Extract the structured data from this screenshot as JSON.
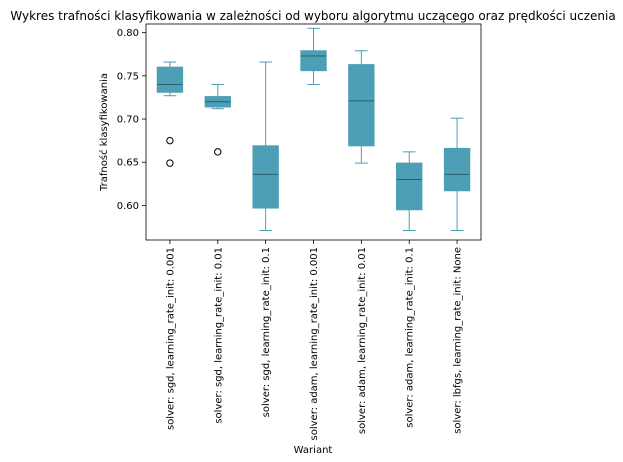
{
  "chart_data": {
    "type": "box",
    "title": "Wykres trafności klasyfikowania w zależności od wyboru algorytmu uczącego oraz prędkości uczenia",
    "xlabel": "Wariant",
    "ylabel": "Trafność klasyfikowania",
    "ylim": [
      0.56,
      0.81
    ],
    "yticks": [
      0.6,
      0.65,
      0.7,
      0.75,
      0.8
    ],
    "ytick_labels": [
      "0.60",
      "0.65",
      "0.70",
      "0.75",
      "0.80"
    ],
    "grid": false,
    "box_color": "#4c9fb5",
    "categories": [
      "solver: sgd, learning_rate_init: 0.001",
      "solver: sgd, learning_rate_init: 0.01",
      "solver: sgd, learning_rate_init: 0.1",
      "solver: adam, learning_rate_init: 0.001",
      "solver: adam, learning_rate_init: 0.01",
      "solver: adam, learning_rate_init: 0.1",
      "solver: lbfgs, learning_rate_init: None"
    ],
    "boxes": [
      {
        "whisker_low": 0.727,
        "q1": 0.731,
        "median": 0.74,
        "q3": 0.76,
        "whisker_high": 0.766,
        "outliers": [
          0.675,
          0.649
        ]
      },
      {
        "whisker_low": 0.712,
        "q1": 0.714,
        "median": 0.72,
        "q3": 0.726,
        "whisker_high": 0.74,
        "outliers": [
          0.662
        ]
      },
      {
        "whisker_low": 0.571,
        "q1": 0.597,
        "median": 0.636,
        "q3": 0.669,
        "whisker_high": 0.766,
        "outliers": []
      },
      {
        "whisker_low": 0.74,
        "q1": 0.756,
        "median": 0.773,
        "q3": 0.779,
        "whisker_high": 0.805,
        "outliers": []
      },
      {
        "whisker_low": 0.649,
        "q1": 0.669,
        "median": 0.721,
        "q3": 0.763,
        "whisker_high": 0.779,
        "outliers": []
      },
      {
        "whisker_low": 0.571,
        "q1": 0.595,
        "median": 0.63,
        "q3": 0.649,
        "whisker_high": 0.662,
        "outliers": []
      },
      {
        "whisker_low": 0.571,
        "q1": 0.617,
        "median": 0.636,
        "q3": 0.666,
        "whisker_high": 0.701,
        "outliers": []
      }
    ]
  }
}
